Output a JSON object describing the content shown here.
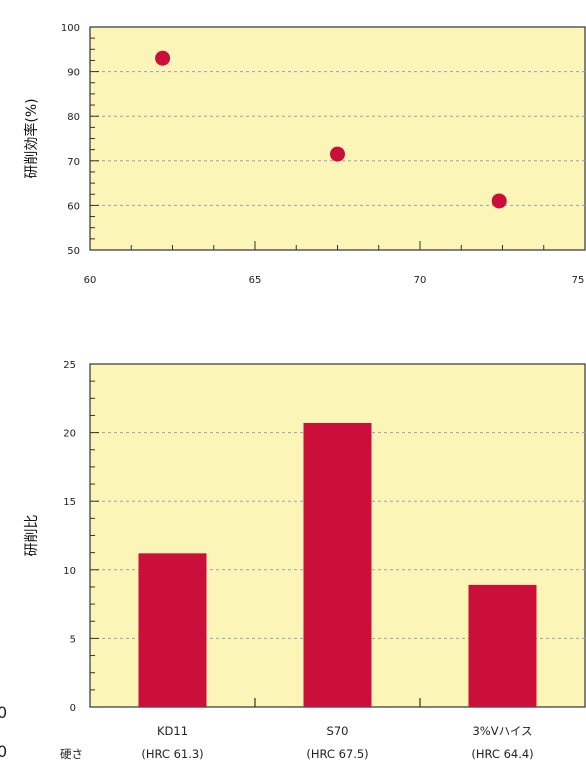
{
  "chart_data": [
    {
      "type": "scatter",
      "ylabel": "研削効率(%)",
      "xlim": [
        60,
        75
      ],
      "ylim": [
        50,
        100
      ],
      "x_ticks": [
        "60",
        "65",
        "70",
        "75"
      ],
      "y_ticks": [
        "50",
        "60",
        "70",
        "80",
        "90",
        "100"
      ],
      "grid": "horizontal dashed",
      "colors": {
        "background": "#fbf6b8",
        "marker": "#cc0e3a",
        "grid": "#9aa0b8"
      },
      "points": [
        {
          "x": 62.2,
          "y": 93
        },
        {
          "x": 67.5,
          "y": 71.5
        },
        {
          "x": 72.4,
          "y": 61
        }
      ]
    },
    {
      "type": "bar",
      "ylabel": "研削比",
      "ylim": [
        0,
        25
      ],
      "y_ticks": [
        "0",
        "5",
        "10",
        "15",
        "20",
        "25"
      ],
      "grid": "horizontal dashed",
      "colors": {
        "background": "#fbf6b8",
        "bar": "#cc0e3a",
        "grid": "#9aa0b8"
      },
      "categories": [
        {
          "name": "KD11",
          "hardness": "(HRC 61.3)"
        },
        {
          "name": "S70",
          "hardness": "(HRC 67.5)"
        },
        {
          "name": "3%Vハイス",
          "hardness": "(HRC 64.4)"
        }
      ],
      "values": [
        11.2,
        20.7,
        8.9
      ],
      "row_label": "硬さ"
    }
  ],
  "edge_marks": [
    "0",
    "0"
  ]
}
